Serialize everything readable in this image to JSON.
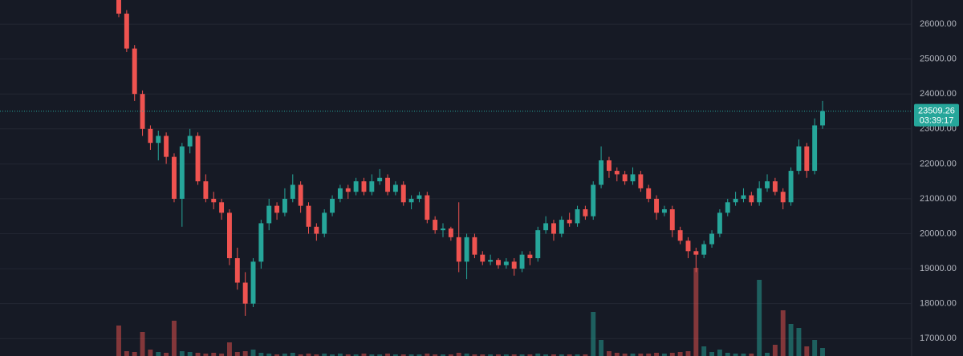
{
  "chart_data": {
    "type": "candlestick",
    "up_color": "#26a69a",
    "down_color": "#ef5350",
    "ylim": [
      16500,
      26690
    ],
    "yticks": [
      {
        "value": 17000,
        "label": "17000.00"
      },
      {
        "value": 18000,
        "label": "18000.00"
      },
      {
        "value": 19000,
        "label": "19000.00"
      },
      {
        "value": 20000,
        "label": "20000.00"
      },
      {
        "value": 21000,
        "label": "21000.00"
      },
      {
        "value": 22000,
        "label": "22000.00"
      },
      {
        "value": 23000,
        "label": "23000.00"
      },
      {
        "value": 24000,
        "label": "24000.00"
      },
      {
        "value": 25000,
        "label": "25000.00"
      },
      {
        "value": 26000,
        "label": "26000.00"
      }
    ],
    "grid": true,
    "open": [
      26700,
      26300,
      25300,
      24000,
      23000,
      22600,
      22800,
      22200,
      21000,
      22500,
      22800,
      21500,
      21000,
      20900,
      20600,
      19300,
      18600,
      18000,
      19200,
      20300,
      20800,
      20600,
      21000,
      21400,
      20800,
      20200,
      20000,
      20600,
      21000,
      21300,
      21200,
      21500,
      21200,
      21500,
      21600,
      21200,
      21400,
      20900,
      21000,
      21100,
      20400,
      20100,
      20150,
      19900,
      19200,
      19900,
      19400,
      19200,
      19250,
      19100,
      19200,
      19000,
      19400,
      19300,
      20100,
      20300,
      20000,
      20400,
      20300,
      20700,
      20500,
      21400,
      22100,
      21800,
      21700,
      21500,
      21700,
      21300,
      21000,
      20600,
      20700,
      20100,
      19800,
      19500,
      19400,
      19700,
      20000,
      20600,
      20900,
      21000,
      21100,
      20900,
      21300,
      21500,
      21200,
      20900,
      21800,
      22500,
      21800,
      23100
    ],
    "high": [
      26800,
      26400,
      25400,
      24100,
      23100,
      22950,
      22900,
      22300,
      22600,
      23000,
      22900,
      21700,
      21200,
      21000,
      20700,
      19600,
      18900,
      19300,
      20400,
      21000,
      20900,
      21300,
      21700,
      21500,
      20900,
      20300,
      20700,
      21100,
      21400,
      21400,
      21600,
      21600,
      21700,
      21850,
      21700,
      21500,
      21500,
      21100,
      21200,
      21200,
      20500,
      20300,
      20200,
      20900,
      20000,
      20000,
      19500,
      19400,
      19300,
      19300,
      19300,
      19500,
      19500,
      20200,
      20500,
      20400,
      20500,
      20600,
      20800,
      20800,
      21500,
      22500,
      22200,
      21900,
      21800,
      21900,
      21800,
      21400,
      21100,
      20800,
      20800,
      20200,
      19900,
      19600,
      19800,
      20100,
      20700,
      21000,
      21200,
      21300,
      21200,
      21500,
      21700,
      21600,
      21300,
      21900,
      22700,
      22600,
      23300,
      23800
    ],
    "low": [
      26200,
      25200,
      23800,
      22800,
      22400,
      22100,
      22000,
      20900,
      20200,
      22300,
      21400,
      20900,
      20700,
      20400,
      19100,
      18400,
      17650,
      17900,
      19000,
      20100,
      20400,
      20500,
      20900,
      20600,
      20000,
      19800,
      19900,
      20500,
      20900,
      21000,
      21100,
      21100,
      21100,
      21400,
      21100,
      21100,
      20800,
      20700,
      20900,
      20300,
      20000,
      19900,
      19800,
      18900,
      18700,
      19300,
      19100,
      19100,
      19000,
      19000,
      18800,
      18900,
      19100,
      19200,
      20000,
      19800,
      19900,
      20200,
      20200,
      20400,
      20400,
      21300,
      21600,
      21500,
      21400,
      21400,
      21200,
      20900,
      20400,
      20500,
      19900,
      19700,
      19300,
      18900,
      19300,
      19600,
      19900,
      20500,
      20800,
      20900,
      20800,
      20800,
      21200,
      21100,
      20700,
      20800,
      21700,
      21600,
      21700,
      23000
    ],
    "close": [
      26300,
      25300,
      24000,
      23000,
      22600,
      22800,
      22200,
      21000,
      22500,
      22800,
      21500,
      21000,
      20900,
      20600,
      19300,
      18600,
      18000,
      19200,
      20300,
      20800,
      20600,
      21000,
      21400,
      20800,
      20200,
      20000,
      20600,
      21000,
      21300,
      21200,
      21500,
      21200,
      21500,
      21600,
      21200,
      21400,
      20900,
      21000,
      21100,
      20400,
      20100,
      20150,
      19900,
      19200,
      19900,
      19400,
      19200,
      19250,
      19100,
      19200,
      19000,
      19400,
      19300,
      20100,
      20300,
      20000,
      20400,
      20300,
      20700,
      20500,
      21400,
      22100,
      21800,
      21700,
      21500,
      21700,
      21300,
      21000,
      20600,
      20700,
      20100,
      19800,
      19500,
      19400,
      19700,
      20000,
      20600,
      20900,
      21000,
      21100,
      20900,
      21300,
      21500,
      21200,
      20900,
      21800,
      22500,
      21800,
      23100,
      23509.26
    ],
    "volume": [
      38,
      6,
      5,
      30,
      8,
      5,
      4,
      44,
      6,
      5,
      4,
      3,
      4,
      3,
      17,
      5,
      6,
      8,
      4,
      3,
      2,
      3,
      4,
      2,
      3,
      2,
      3,
      2,
      3,
      2,
      2,
      3,
      2,
      2,
      3,
      2,
      2,
      2,
      2,
      3,
      2,
      2,
      2,
      4,
      3,
      2,
      2,
      2,
      2,
      2,
      2,
      2,
      2,
      3,
      2,
      2,
      2,
      2,
      2,
      2,
      55,
      20,
      6,
      4,
      3,
      3,
      3,
      3,
      4,
      3,
      4,
      5,
      6,
      110,
      12,
      5,
      8,
      4,
      3,
      3,
      3,
      95,
      4,
      14,
      57,
      40,
      35,
      12,
      20,
      10
    ],
    "countdown": "03:39:17"
  }
}
